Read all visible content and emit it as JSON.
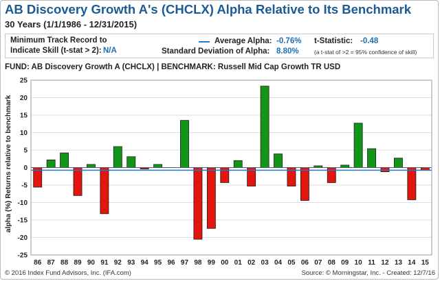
{
  "header": {
    "title": "AB Discovery Growth A's (CHCLX) Alpha Relative to Its Benchmark",
    "subtitle": "30 Years (1/1/1986 - 12/31/2015)"
  },
  "infobox": {
    "track_record_label_line1": "Minimum Track Record to",
    "track_record_label_line2": "Indicate Skill (t-stat > 2):",
    "track_record_value": "N/A",
    "avg_alpha_label": "Average Alpha:",
    "avg_alpha_value": "-0.76%",
    "tstat_label": "t-Statistic:",
    "tstat_value": "-0.48",
    "stdev_label": "Standard Deviation of Alpha:",
    "stdev_value": "8.80%",
    "tstat_note": "(a t-stat of >2 = 95% confidence of skill)"
  },
  "fund_line": "FUND: AB Discovery Growth A (CHCLX)  | BENCHMARK: Russell Mid Cap Growth TR USD",
  "footer": {
    "left": "© 2016 Index Fund Advisors, Inc. (IFA.com)",
    "right": "Source: © Morningstar, Inc. - Created: 12/7/16"
  },
  "colors": {
    "positive": "#12961a",
    "negative": "#e3150f",
    "average_line": "#1f78d1",
    "title": "#1d5a93"
  },
  "chart_data": {
    "type": "bar",
    "title": "AB Discovery Growth A's (CHCLX) Alpha Relative to Its Benchmark",
    "xlabel": "",
    "ylabel": "alpha (%) Returns relative to benchmark",
    "ylim": [
      -25,
      25
    ],
    "yticks": [
      -25,
      -20,
      -15,
      -10,
      -5,
      0,
      5,
      10,
      15,
      20,
      25
    ],
    "grid": true,
    "average_line": -0.76,
    "categories": [
      "86",
      "87",
      "88",
      "89",
      "90",
      "91",
      "92",
      "93",
      "94",
      "95",
      "96",
      "97",
      "98",
      "99",
      "00",
      "01",
      "02",
      "03",
      "04",
      "05",
      "06",
      "07",
      "08",
      "09",
      "10",
      "11",
      "12",
      "13",
      "14",
      "15"
    ],
    "values": [
      -5.6,
      2.2,
      4.2,
      -8.0,
      0.9,
      -13.2,
      6.0,
      3.1,
      -0.4,
      0.9,
      0.0,
      13.5,
      -20.5,
      -17.4,
      -4.3,
      2.0,
      -5.3,
      23.3,
      3.9,
      -5.3,
      -9.4,
      0.5,
      -4.3,
      0.7,
      12.7,
      5.4,
      -1.2,
      2.7,
      -9.2,
      -0.8
    ]
  }
}
